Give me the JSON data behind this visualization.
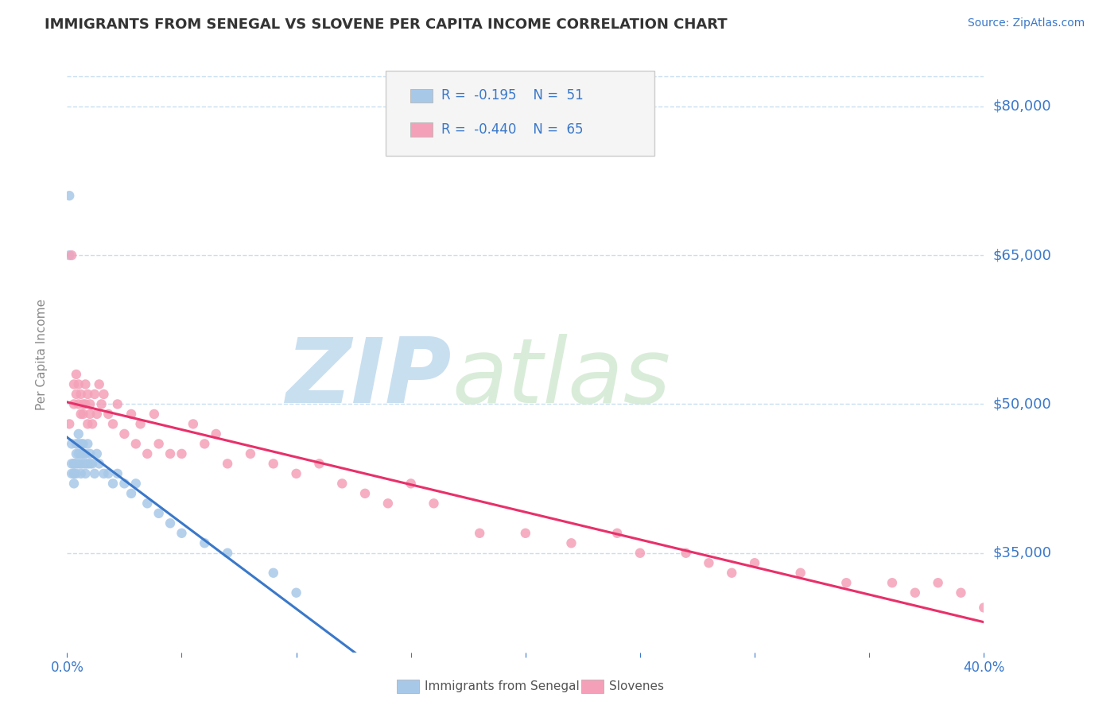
{
  "title": "IMMIGRANTS FROM SENEGAL VS SLOVENE PER CAPITA INCOME CORRELATION CHART",
  "source_text": "Source: ZipAtlas.com",
  "ylabel": "Per Capita Income",
  "xmin": 0.0,
  "xmax": 0.4,
  "ymin": 25000,
  "ymax": 85000,
  "yticks": [
    35000,
    50000,
    65000,
    80000
  ],
  "ytick_labels": [
    "$35,000",
    "$50,000",
    "$65,000",
    "$80,000"
  ],
  "xtick_positions": [
    0.0,
    0.05,
    0.1,
    0.15,
    0.2,
    0.25,
    0.3,
    0.35,
    0.4
  ],
  "xtick_labels_show": [
    "0.0%",
    "",
    "",
    "",
    "",
    "",
    "",
    "",
    "40.0%"
  ],
  "series": [
    {
      "name": "Immigrants from Senegal",
      "R": -0.195,
      "N": 51,
      "color": "#a8c8e8",
      "line_color": "#3a78c9",
      "line_style": "solid",
      "x": [
        0.001,
        0.001,
        0.002,
        0.002,
        0.002,
        0.003,
        0.003,
        0.003,
        0.003,
        0.003,
        0.004,
        0.004,
        0.004,
        0.004,
        0.005,
        0.005,
        0.005,
        0.005,
        0.006,
        0.006,
        0.006,
        0.006,
        0.007,
        0.007,
        0.007,
        0.008,
        0.008,
        0.008,
        0.009,
        0.009,
        0.01,
        0.01,
        0.011,
        0.012,
        0.013,
        0.014,
        0.016,
        0.018,
        0.02,
        0.022,
        0.025,
        0.028,
        0.03,
        0.035,
        0.04,
        0.045,
        0.05,
        0.06,
        0.07,
        0.09,
        0.1
      ],
      "y": [
        71000,
        65000,
        46000,
        44000,
        43000,
        44000,
        44000,
        43000,
        43000,
        42000,
        46000,
        45000,
        44000,
        43000,
        47000,
        46000,
        45000,
        44000,
        46000,
        45000,
        44000,
        43000,
        46000,
        45000,
        44000,
        45000,
        44000,
        43000,
        46000,
        44000,
        45000,
        44000,
        44000,
        43000,
        45000,
        44000,
        43000,
        43000,
        42000,
        43000,
        42000,
        41000,
        42000,
        40000,
        39000,
        38000,
        37000,
        36000,
        35000,
        33000,
        31000
      ],
      "trend_xmin": 0.0,
      "trend_xmax": 0.13
    },
    {
      "name": "Slovenes",
      "R": -0.44,
      "N": 65,
      "color": "#f4a0b8",
      "line_color": "#e8306a",
      "line_style": "solid",
      "x": [
        0.001,
        0.002,
        0.003,
        0.003,
        0.004,
        0.004,
        0.005,
        0.005,
        0.006,
        0.006,
        0.007,
        0.007,
        0.008,
        0.008,
        0.009,
        0.009,
        0.01,
        0.01,
        0.011,
        0.012,
        0.013,
        0.014,
        0.015,
        0.016,
        0.018,
        0.02,
        0.022,
        0.025,
        0.028,
        0.03,
        0.032,
        0.035,
        0.038,
        0.04,
        0.045,
        0.05,
        0.055,
        0.06,
        0.065,
        0.07,
        0.08,
        0.09,
        0.1,
        0.11,
        0.12,
        0.13,
        0.14,
        0.15,
        0.16,
        0.18,
        0.2,
        0.22,
        0.24,
        0.25,
        0.27,
        0.28,
        0.29,
        0.3,
        0.32,
        0.34,
        0.36,
        0.37,
        0.38,
        0.39,
        0.4
      ],
      "y": [
        48000,
        65000,
        52000,
        50000,
        53000,
        51000,
        52000,
        50000,
        49000,
        51000,
        50000,
        49000,
        52000,
        50000,
        48000,
        51000,
        50000,
        49000,
        48000,
        51000,
        49000,
        52000,
        50000,
        51000,
        49000,
        48000,
        50000,
        47000,
        49000,
        46000,
        48000,
        45000,
        49000,
        46000,
        45000,
        45000,
        48000,
        46000,
        47000,
        44000,
        45000,
        44000,
        43000,
        44000,
        42000,
        41000,
        40000,
        42000,
        40000,
        37000,
        37000,
        36000,
        37000,
        35000,
        35000,
        34000,
        33000,
        34000,
        33000,
        32000,
        32000,
        31000,
        32000,
        31000,
        29500
      ],
      "trend_xmin": 0.0,
      "trend_xmax": 0.4
    }
  ],
  "legend_R_color": "#3a78c9",
  "watermark_zip": "ZIP",
  "watermark_atlas": "atlas",
  "watermark_zip_color": "#c8dff0",
  "watermark_atlas_color": "#c8dff0",
  "background_color": "#ffffff",
  "grid_color": "#c8dff0",
  "title_color": "#333333",
  "axis_label_color": "#888888",
  "tick_color": "#3a78c9",
  "source_color": "#3a78c9",
  "legend_box_color": "#f5f5f5",
  "legend_box_edge": "#cccccc"
}
